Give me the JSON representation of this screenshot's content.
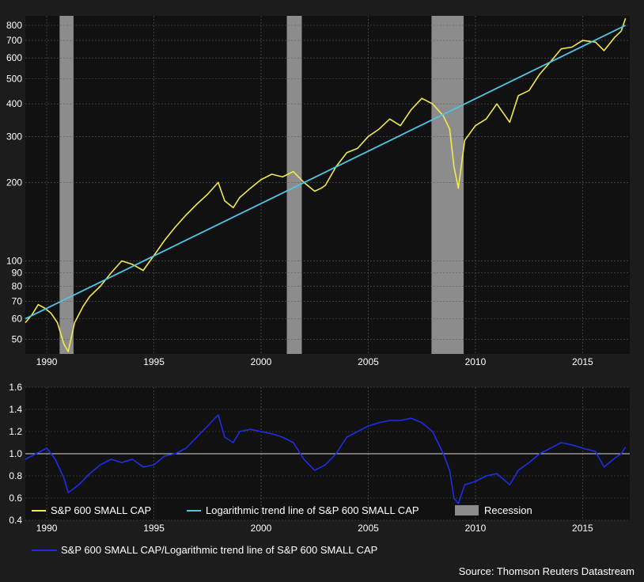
{
  "chart_data": [
    {
      "type": "line",
      "y_scale": "log",
      "xlim": [
        1989.0,
        2017.2
      ],
      "ylim": [
        44,
        870
      ],
      "x_ticks": [
        1990,
        1995,
        2000,
        2005,
        2010,
        2015
      ],
      "x_tick_labels": [
        "1990",
        "1995",
        "2000",
        "2005",
        "2010",
        "2015"
      ],
      "y_ticks": [
        50,
        60,
        70,
        80,
        90,
        100,
        200,
        300,
        400,
        500,
        600,
        700,
        800
      ],
      "y_tick_labels": [
        "50",
        "60",
        "70",
        "80",
        "90",
        "100",
        "200",
        "300",
        "400",
        "500",
        "600",
        "700",
        "800"
      ],
      "grid": true,
      "recessions": [
        [
          1990.6,
          1991.25
        ],
        [
          2001.2,
          2001.9
        ],
        [
          2007.95,
          2009.45
        ]
      ],
      "series": [
        {
          "name": "S&P 600 SMALL CAP",
          "color": "#f2ea4b",
          "x": [
            1989.0,
            1989.3,
            1989.6,
            1989.9,
            1990.2,
            1990.5,
            1990.8,
            1991.0,
            1991.3,
            1991.7,
            1992.0,
            1992.5,
            1993.0,
            1993.5,
            1994.0,
            1994.5,
            1995.0,
            1995.5,
            1996.0,
            1996.5,
            1997.0,
            1997.5,
            1998.0,
            1998.3,
            1998.7,
            1999.0,
            1999.5,
            2000.0,
            2000.5,
            2001.0,
            2001.5,
            2002.0,
            2002.5,
            2002.8,
            2003.0,
            2003.5,
            2004.0,
            2004.5,
            2005.0,
            2005.5,
            2006.0,
            2006.5,
            2007.0,
            2007.5,
            2008.0,
            2008.5,
            2008.8,
            2009.0,
            2009.2,
            2009.5,
            2010.0,
            2010.5,
            2011.0,
            2011.6,
            2012.0,
            2012.5,
            2013.0,
            2013.5,
            2014.0,
            2014.5,
            2015.0,
            2015.6,
            2016.0,
            2016.5,
            2016.8,
            2017.0
          ],
          "values": [
            58,
            62,
            68,
            66,
            63,
            58,
            48,
            45,
            58,
            67,
            73,
            80,
            90,
            100,
            97,
            92,
            105,
            120,
            135,
            150,
            165,
            180,
            200,
            170,
            160,
            175,
            190,
            205,
            215,
            210,
            220,
            200,
            185,
            190,
            195,
            230,
            260,
            270,
            300,
            320,
            350,
            330,
            380,
            420,
            400,
            360,
            320,
            230,
            190,
            290,
            330,
            350,
            400,
            340,
            430,
            450,
            520,
            580,
            650,
            660,
            700,
            690,
            640,
            720,
            760,
            850
          ]
        },
        {
          "name": "Logarithmic trend line of S&P 600 SMALL CAP",
          "color": "#4fc6e8",
          "x": [
            1989.0,
            2017.0
          ],
          "values": [
            60,
            800
          ]
        }
      ]
    },
    {
      "type": "line",
      "xlim": [
        1989.0,
        2017.2
      ],
      "ylim": [
        0.4,
        1.6
      ],
      "x_ticks": [
        1990,
        1995,
        2000,
        2005,
        2010,
        2015
      ],
      "x_tick_labels": [
        "1990",
        "1995",
        "2000",
        "2005",
        "2010",
        "2015"
      ],
      "y_ticks": [
        0.4,
        0.6,
        0.8,
        1.0,
        1.2,
        1.4,
        1.6
      ],
      "y_tick_labels": [
        "0.4",
        "0.6",
        "0.8",
        "1.0",
        "1.2",
        "1.4",
        "1.6"
      ],
      "reference_line": 1.0,
      "grid": true,
      "series": [
        {
          "name": "S&P 600 SMALL CAP/Logarithmic trend line of S&P 600 SMALL CAP",
          "color": "#1e2ee6",
          "x": [
            1989.0,
            1989.5,
            1990.0,
            1990.4,
            1990.8,
            1991.0,
            1991.5,
            1992.0,
            1992.5,
            1993.0,
            1993.5,
            1994.0,
            1994.5,
            1995.0,
            1995.5,
            1996.0,
            1996.5,
            1997.0,
            1997.5,
            1998.0,
            1998.3,
            1998.7,
            1999.0,
            1999.5,
            2000.0,
            2000.5,
            2001.0,
            2001.5,
            2002.0,
            2002.5,
            2002.8,
            2003.0,
            2003.5,
            2004.0,
            2004.5,
            2005.0,
            2005.5,
            2006.0,
            2006.5,
            2007.0,
            2007.5,
            2008.0,
            2008.5,
            2008.8,
            2009.0,
            2009.2,
            2009.5,
            2010.0,
            2010.5,
            2011.0,
            2011.6,
            2012.0,
            2012.5,
            2013.0,
            2013.5,
            2014.0,
            2014.5,
            2015.0,
            2015.6,
            2016.0,
            2016.5,
            2016.8,
            2017.0
          ],
          "values": [
            0.95,
            1.0,
            1.05,
            0.95,
            0.78,
            0.65,
            0.72,
            0.82,
            0.9,
            0.95,
            0.92,
            0.95,
            0.88,
            0.9,
            0.98,
            1.0,
            1.05,
            1.15,
            1.25,
            1.35,
            1.15,
            1.1,
            1.2,
            1.22,
            1.2,
            1.18,
            1.15,
            1.1,
            0.95,
            0.85,
            0.88,
            0.9,
            1.0,
            1.15,
            1.2,
            1.25,
            1.28,
            1.3,
            1.3,
            1.32,
            1.28,
            1.2,
            1.0,
            0.85,
            0.6,
            0.55,
            0.72,
            0.75,
            0.8,
            0.82,
            0.72,
            0.85,
            0.92,
            1.0,
            1.05,
            1.1,
            1.08,
            1.05,
            1.02,
            0.88,
            0.96,
            1.0,
            1.06
          ]
        }
      ]
    }
  ],
  "legend": {
    "small_cap": "S&P 600 SMALL CAP",
    "trend": "Logarithmic trend line of S&P 600 SMALL CAP",
    "recession": "Recession",
    "ratio": "S&P 600 SMALL CAP/Logarithmic trend line of S&P 600 SMALL CAP"
  },
  "colors": {
    "small_cap": "#f2ea4b",
    "trend": "#4fc6e8",
    "ratio": "#1e2ee6",
    "recession": "#8c8c8c",
    "plot_bg": "#111111",
    "page_bg": "#1c1c1c",
    "grid": "#5a5a5a",
    "reference": "#d8d8d8"
  },
  "source": "Source: Thomson Reuters Datastream"
}
